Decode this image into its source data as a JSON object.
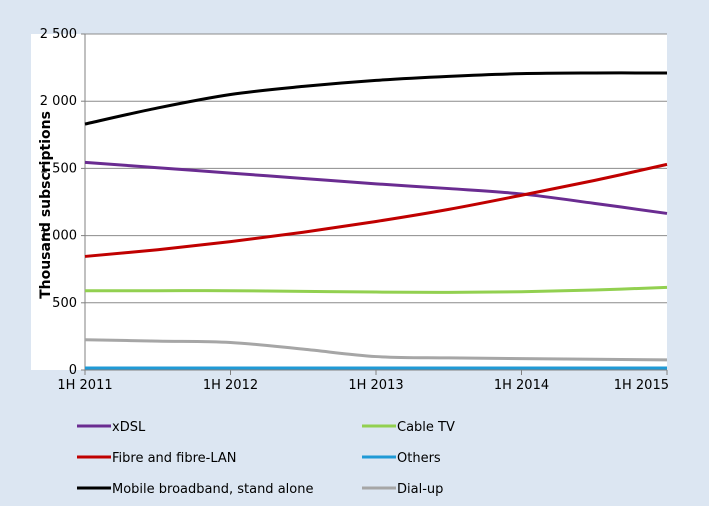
{
  "chart_data": {
    "type": "line",
    "title": "",
    "xlabel": "",
    "ylabel": "Thousand subscriptions",
    "ylim": [
      0,
      2500
    ],
    "yticks": [
      0,
      500,
      1000,
      1500,
      2000,
      2500
    ],
    "ytick_labels": [
      "0",
      "500",
      "1 000",
      "1 500",
      "2 000",
      "2 500"
    ],
    "x": [
      "1H 2011",
      "2H 2011",
      "1H 2012",
      "2H 2012",
      "1H 2013",
      "2H 2013",
      "1H 2014",
      "2H 2014",
      "1H 2015"
    ],
    "xtick_labels": [
      "1H 2011",
      "1H 2012",
      "1H 2013",
      "1H 2014",
      "1H 2015"
    ],
    "grid": "horizontal",
    "legend_position": "bottom",
    "series": [
      {
        "name": "xDSL",
        "color": "#6a2c91",
        "values": [
          1545,
          1505,
          1465,
          1425,
          1385,
          1350,
          1310,
          1240,
          1165
        ]
      },
      {
        "name": "Cable TV",
        "color": "#92d050",
        "values": [
          590,
          590,
          590,
          585,
          580,
          578,
          582,
          595,
          615
        ]
      },
      {
        "name": "Fibre and fibre-LAN",
        "color": "#c00000",
        "values": [
          845,
          895,
          955,
          1025,
          1105,
          1195,
          1300,
          1410,
          1530
        ]
      },
      {
        "name": "Others",
        "color": "#1f9ad6",
        "values": [
          15,
          15,
          15,
          15,
          15,
          15,
          15,
          15,
          15
        ]
      },
      {
        "name": "Mobile broadband, stand alone",
        "color": "#000000",
        "values": [
          1830,
          1950,
          2050,
          2110,
          2155,
          2185,
          2205,
          2210,
          2210
        ]
      },
      {
        "name": "Dial-up",
        "color": "#a6a6a6",
        "values": [
          225,
          215,
          205,
          155,
          100,
          90,
          85,
          80,
          75
        ]
      }
    ]
  }
}
